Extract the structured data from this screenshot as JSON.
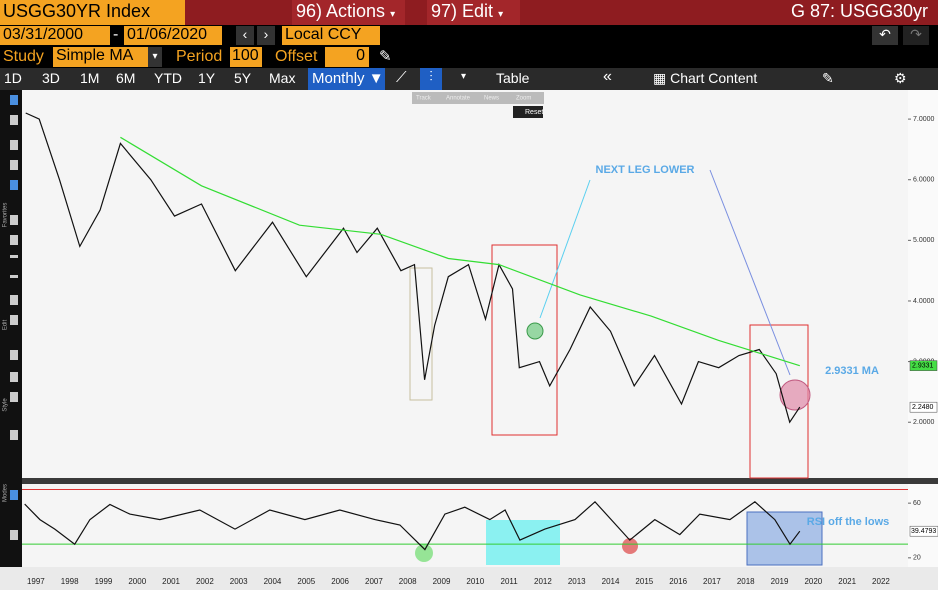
{
  "toolbar": {
    "security": "USGG30YR Index",
    "actions": "96) Actions",
    "edit": "97) Edit",
    "page_code": "G 87: USGG30yr",
    "start_date": "03/31/2000",
    "date_sep": "-",
    "end_date": "01/06/2020",
    "currency": "Local CCY",
    "study_label": "Study",
    "study": "Simple MA",
    "period_label": "Period",
    "period": "100",
    "offset_label": "Offset",
    "offset": "0",
    "ranges": [
      "1D",
      "3D",
      "1M",
      "6M",
      "YTD",
      "1Y",
      "5Y",
      "Max"
    ],
    "frequency": "Monthly",
    "table": "Table",
    "chart_content": "Chart Content",
    "mini_buttons": [
      "Track",
      "Annotate",
      "News",
      "Zoom"
    ],
    "reset": "Reset",
    "side_labels": [
      "Favorites",
      "Edit",
      "Style",
      "Modes"
    ]
  },
  "chart_data": [
    {
      "type": "line",
      "xlim": [
        1996.59,
        2022.8
      ],
      "ylim": [
        1.08,
        7.48
      ],
      "yticks": [
        {
          "value": 7,
          "label": "7.0000"
        },
        {
          "value": 6,
          "label": "6.0000"
        },
        {
          "value": 5,
          "label": "5.0000"
        },
        {
          "value": 4,
          "label": "4.0000"
        },
        {
          "value": 3,
          "label": "3.0000"
        },
        {
          "value": 2,
          "label": "2.0000"
        }
      ],
      "series": [
        {
          "color": "#111111",
          "x": [
            1996.7,
            1997.1,
            1997.7,
            1998.3,
            1998.9,
            1999.5,
            2000.4,
            2001.1,
            2001.9,
            2002.9,
            2004.0,
            2005.0,
            2006.1,
            2006.5,
            2007.1,
            2007.8,
            2008.2,
            2008.5,
            2008.8,
            2009.2,
            2009.8,
            2010.3,
            2010.7,
            2011.1,
            2011.3,
            2011.9,
            2012.2,
            2012.8,
            2013.4,
            2014.0,
            2014.7,
            2015.3,
            2016.1,
            2016.6,
            2017.2,
            2017.8,
            2018.4,
            2018.9,
            2019.3,
            2019.6
          ],
          "values": [
            7.1,
            7.0,
            6.0,
            4.9,
            5.5,
            6.6,
            6.0,
            5.4,
            5.6,
            4.5,
            5.3,
            4.4,
            5.2,
            4.8,
            5.2,
            4.5,
            4.6,
            2.7,
            3.6,
            4.4,
            4.6,
            3.7,
            4.6,
            4.2,
            2.9,
            3.0,
            2.6,
            3.2,
            3.9,
            3.5,
            2.6,
            3.1,
            2.3,
            3.0,
            2.9,
            3.1,
            3.2,
            2.8,
            2.0,
            2.25
          ]
        },
        {
          "color": "#33dd33",
          "x": [
            1999.5,
            2001.9,
            2004.8,
            2007.2,
            2009.2,
            2010.7,
            2013.1,
            2015.2,
            2017.2,
            2019.6
          ],
          "values": [
            6.7,
            5.9,
            5.25,
            5.1,
            4.7,
            4.6,
            4.1,
            3.75,
            3.35,
            2.9331
          ]
        }
      ],
      "price_labels": [
        {
          "value": 2.9331,
          "label": "2.9331",
          "color": "#44dd44"
        },
        {
          "value": 2.248,
          "label": "2.2480",
          "color": "#ffffff"
        }
      ],
      "annotations": [
        {
          "text": "NEXT LEG LOWER",
          "color": "#5aa9e6"
        },
        {
          "text": "2.9331 MA",
          "color": "#5aa9e6"
        }
      ]
    },
    {
      "type": "line",
      "xlim": [
        1996.59,
        2022.8
      ],
      "ylim": [
        13.3,
        74
      ],
      "yticks": [
        60,
        20
      ],
      "xticks": [
        1997,
        1998,
        1999,
        2000,
        2001,
        2002,
        2003,
        2004,
        2005,
        2006,
        2007,
        2008,
        2009,
        2010,
        2011,
        2012,
        2013,
        2014,
        2015,
        2016,
        2017,
        2018,
        2019,
        2020,
        2021,
        2022
      ],
      "series": [
        {
          "color": "#111111",
          "x": [
            1996.67,
            1997.12,
            1997.56,
            1998.15,
            1998.6,
            1999.19,
            1999.78,
            2000.67,
            2001.85,
            2002.89,
            2003.92,
            2004.96,
            2005.99,
            2007.03,
            2007.77,
            2008.51,
            2009.1,
            2009.69,
            2010.43,
            2010.88,
            2011.32,
            2012.06,
            2012.95,
            2013.54,
            2014.57,
            2015.31,
            2016.05,
            2016.64,
            2017.53,
            2018.27,
            2018.86,
            2019.31,
            2019.6
          ],
          "values": [
            59.3,
            48,
            41,
            30,
            48,
            59,
            52,
            48,
            55,
            41,
            55,
            48,
            55,
            48,
            44,
            26,
            52,
            57,
            48,
            55,
            33,
            41,
            48,
            61,
            33,
            48,
            37,
            52,
            48,
            61,
            48,
            30,
            39.4793
          ]
        }
      ],
      "hlines": [
        {
          "value": 70,
          "color": "#dd3333"
        },
        {
          "value": 30,
          "color": "#33cc33"
        }
      ],
      "current": 39.4793,
      "annotations": [
        {
          "text": "RSI off the lows",
          "color": "#5aa9e6"
        }
      ]
    }
  ]
}
